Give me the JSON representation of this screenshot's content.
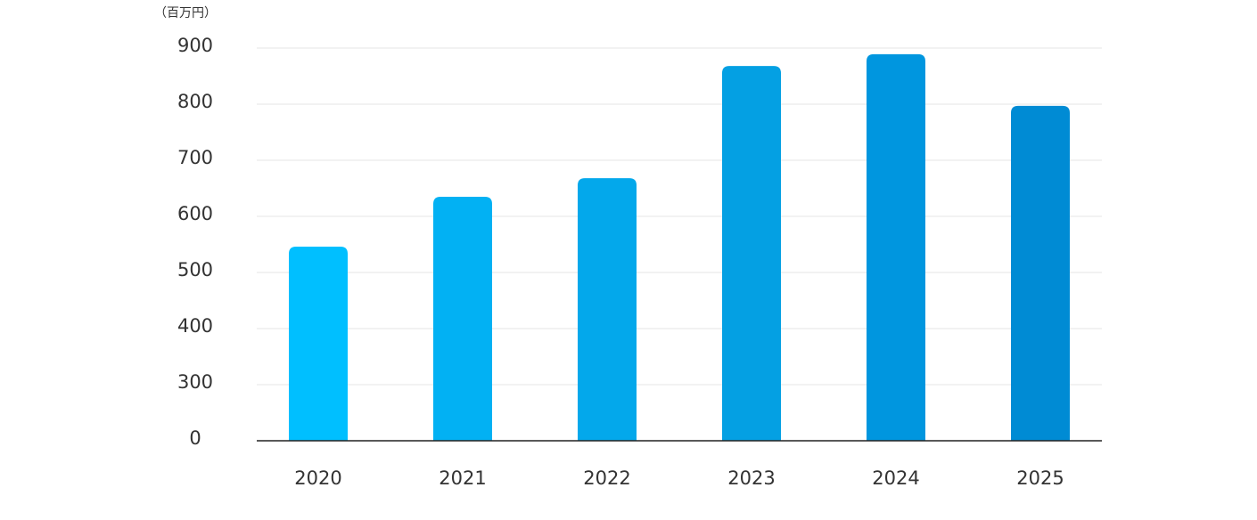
{
  "chart_data": {
    "type": "bar",
    "y_axis_label": "（百万円）",
    "categories": [
      "2020",
      "2021",
      "2022",
      "2023",
      "2024",
      "2025"
    ],
    "values": [
      546,
      635,
      668,
      868,
      889,
      797
    ],
    "colors": [
      "#00bfff",
      "#02b1f3",
      "#03a8eb",
      "#04a0e3",
      "#0096df",
      "#008bd4"
    ],
    "ylim": [
      0,
      900
    ],
    "yticks": [
      0,
      300,
      400,
      500,
      600,
      700,
      800,
      900
    ],
    "grid": true
  }
}
